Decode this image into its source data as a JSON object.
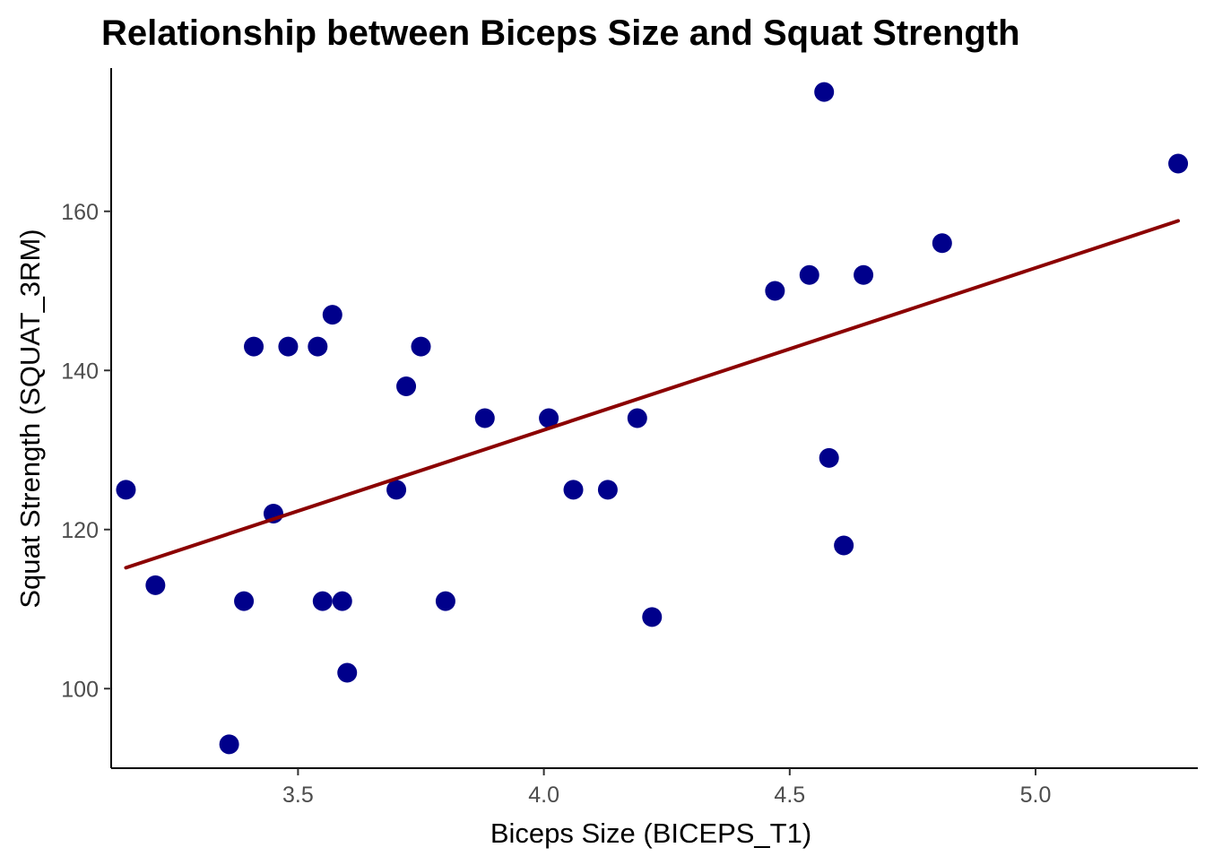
{
  "chart_data": {
    "type": "scatter",
    "title": "Relationship between Biceps Size and Squat Strength",
    "xlabel": "Biceps Size (BICEPS_T1)",
    "ylabel": "Squat Strength (SQUAT_3RM)",
    "xlim": [
      3.12,
      5.33
    ],
    "ylim": [
      90,
      178
    ],
    "x_ticks": [
      3.5,
      4.0,
      4.5,
      5.0
    ],
    "x_tick_labels": [
      "3.5",
      "4.0",
      "4.5",
      "5.0"
    ],
    "y_ticks": [
      100,
      120,
      140,
      160
    ],
    "y_tick_labels": [
      "100",
      "120",
      "140",
      "160"
    ],
    "grid": false,
    "legend": "none",
    "point_color": "#00008B",
    "line_color": "#8B0000",
    "points": [
      {
        "x": 3.15,
        "y": 125
      },
      {
        "x": 3.21,
        "y": 113
      },
      {
        "x": 3.36,
        "y": 93
      },
      {
        "x": 3.39,
        "y": 111
      },
      {
        "x": 3.41,
        "y": 143
      },
      {
        "x": 3.45,
        "y": 122
      },
      {
        "x": 3.48,
        "y": 143
      },
      {
        "x": 3.54,
        "y": 143
      },
      {
        "x": 3.55,
        "y": 111
      },
      {
        "x": 3.57,
        "y": 147
      },
      {
        "x": 3.59,
        "y": 111
      },
      {
        "x": 3.6,
        "y": 102
      },
      {
        "x": 3.7,
        "y": 125
      },
      {
        "x": 3.72,
        "y": 138
      },
      {
        "x": 3.75,
        "y": 143
      },
      {
        "x": 3.8,
        "y": 111
      },
      {
        "x": 3.88,
        "y": 134
      },
      {
        "x": 4.01,
        "y": 134
      },
      {
        "x": 4.06,
        "y": 125
      },
      {
        "x": 4.13,
        "y": 125
      },
      {
        "x": 4.19,
        "y": 134
      },
      {
        "x": 4.22,
        "y": 109
      },
      {
        "x": 4.47,
        "y": 150
      },
      {
        "x": 4.54,
        "y": 152
      },
      {
        "x": 4.57,
        "y": 175
      },
      {
        "x": 4.58,
        "y": 129
      },
      {
        "x": 4.61,
        "y": 118
      },
      {
        "x": 4.65,
        "y": 152
      },
      {
        "x": 4.81,
        "y": 156
      },
      {
        "x": 5.29,
        "y": 166
      }
    ],
    "trend_line": {
      "x": [
        3.15,
        5.29
      ],
      "y": [
        115.2,
        158.8
      ]
    }
  }
}
